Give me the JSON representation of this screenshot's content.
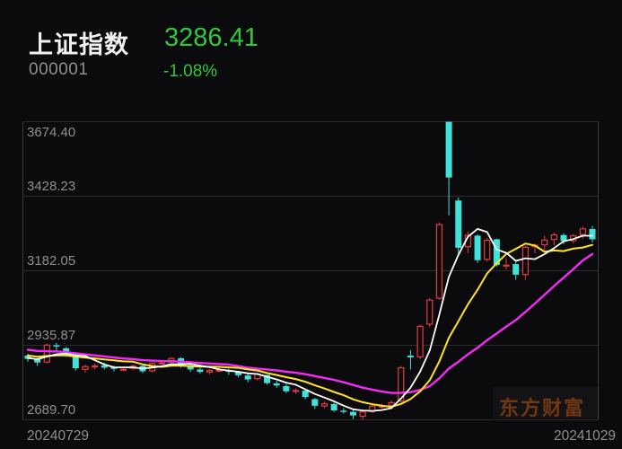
{
  "header": {
    "name": "上证指数",
    "code": "000001",
    "price": "3286.41",
    "change_pct": "-1.08%"
  },
  "watermark": {
    "text": "东方财富"
  },
  "colors": {
    "background": "#0b0b0d",
    "up_candle": "#e33b3f",
    "down_candle": "#3fe1d8",
    "ma5": "#ffffff",
    "ma10": "#ffe41e",
    "ma20": "#f32cf3",
    "price_green": "#30c83a",
    "axis_text": "#8e8e93",
    "grid_line": "#2c2c30"
  },
  "chart_data": {
    "type": "candlestick",
    "title": "上证指数 daily candlestick with MA5/MA10/MA20",
    "y_axis_labels": [
      "3674.40",
      "3428.23",
      "3182.05",
      "2935.87",
      "2689.70"
    ],
    "y_max": 3674.4,
    "y_min": 2689.7,
    "x_labels": [
      "20240729",
      "20241029"
    ],
    "grid": true,
    "legend_position": "none",
    "ohlc": [
      [
        2902,
        2908,
        2882,
        2891
      ],
      [
        2890,
        2898,
        2868,
        2879
      ],
      [
        2879,
        2942,
        2876,
        2938
      ],
      [
        2936,
        2944,
        2918,
        2932
      ],
      [
        2926,
        2930,
        2898,
        2905
      ],
      [
        2898,
        2900,
        2852,
        2860
      ],
      [
        2855,
        2872,
        2846,
        2867
      ],
      [
        2864,
        2876,
        2856,
        2869
      ],
      [
        2870,
        2878,
        2856,
        2862
      ],
      [
        2863,
        2868,
        2850,
        2858
      ],
      [
        2854,
        2866,
        2850,
        2858
      ],
      [
        2858,
        2872,
        2854,
        2868
      ],
      [
        2868,
        2870,
        2844,
        2850
      ],
      [
        2850,
        2880,
        2846,
        2877
      ],
      [
        2877,
        2886,
        2870,
        2879
      ],
      [
        2879,
        2896,
        2876,
        2894
      ],
      [
        2893,
        2896,
        2862,
        2867
      ],
      [
        2866,
        2872,
        2848,
        2856
      ],
      [
        2856,
        2862,
        2842,
        2848
      ],
      [
        2846,
        2858,
        2840,
        2854
      ],
      [
        2854,
        2862,
        2846,
        2855
      ],
      [
        2854,
        2858,
        2838,
        2848
      ],
      [
        2847,
        2852,
        2830,
        2837
      ],
      [
        2836,
        2842,
        2814,
        2823
      ],
      [
        2824,
        2846,
        2820,
        2842
      ],
      [
        2838,
        2838,
        2806,
        2811
      ],
      [
        2810,
        2818,
        2796,
        2803
      ],
      [
        2801,
        2808,
        2778,
        2784
      ],
      [
        2782,
        2794,
        2776,
        2788
      ],
      [
        2786,
        2790,
        2758,
        2765
      ],
      [
        2758,
        2762,
        2726,
        2736
      ],
      [
        2734,
        2750,
        2728,
        2744
      ],
      [
        2742,
        2746,
        2716,
        2721
      ],
      [
        2720,
        2728,
        2710,
        2717
      ],
      [
        2716,
        2722,
        2692,
        2704
      ],
      [
        2700,
        2720,
        2690,
        2717
      ],
      [
        2716,
        2742,
        2712,
        2736
      ],
      [
        2735,
        2742,
        2726,
        2736
      ],
      [
        2736,
        2754,
        2730,
        2748
      ],
      [
        2750,
        2868,
        2746,
        2863
      ],
      [
        2902,
        2920,
        2856,
        2896
      ],
      [
        2896,
        3004,
        2890,
        3000
      ],
      [
        3004,
        3092,
        2996,
        3087
      ],
      [
        3090,
        3342,
        3086,
        3336
      ],
      [
        3674,
        3674,
        3365,
        3490
      ],
      [
        3414,
        3424,
        3230,
        3258
      ],
      [
        3260,
        3312,
        3240,
        3301
      ],
      [
        3298,
        3302,
        3208,
        3217
      ],
      [
        3218,
        3290,
        3212,
        3284
      ],
      [
        3286,
        3288,
        3196,
        3201
      ],
      [
        3198,
        3224,
        3186,
        3202
      ],
      [
        3204,
        3212,
        3152,
        3169
      ],
      [
        3168,
        3266,
        3152,
        3261
      ],
      [
        3260,
        3272,
        3240,
        3268
      ],
      [
        3266,
        3298,
        3250,
        3285
      ],
      [
        3284,
        3308,
        3266,
        3302
      ],
      [
        3300,
        3306,
        3270,
        3280
      ],
      [
        3280,
        3304,
        3272,
        3299
      ],
      [
        3300,
        3328,
        3288,
        3322
      ],
      [
        3320,
        3330,
        3276,
        3286
      ]
    ],
    "ma_seed_closes": [
      2962,
      2958,
      2954,
      2950,
      2946,
      2942,
      2938,
      2934,
      2930,
      2926,
      2922,
      2918,
      2914,
      2910,
      2906,
      2902,
      2899,
      2896,
      2893,
      2891
    ],
    "moving_averages": [
      {
        "name": "MA20",
        "period": 20,
        "color_key": "ma20",
        "width": 2.4
      },
      {
        "name": "MA10",
        "period": 10,
        "color_key": "ma10",
        "width": 2.0
      },
      {
        "name": "MA5",
        "period": 5,
        "color_key": "ma5",
        "width": 1.8
      }
    ]
  }
}
